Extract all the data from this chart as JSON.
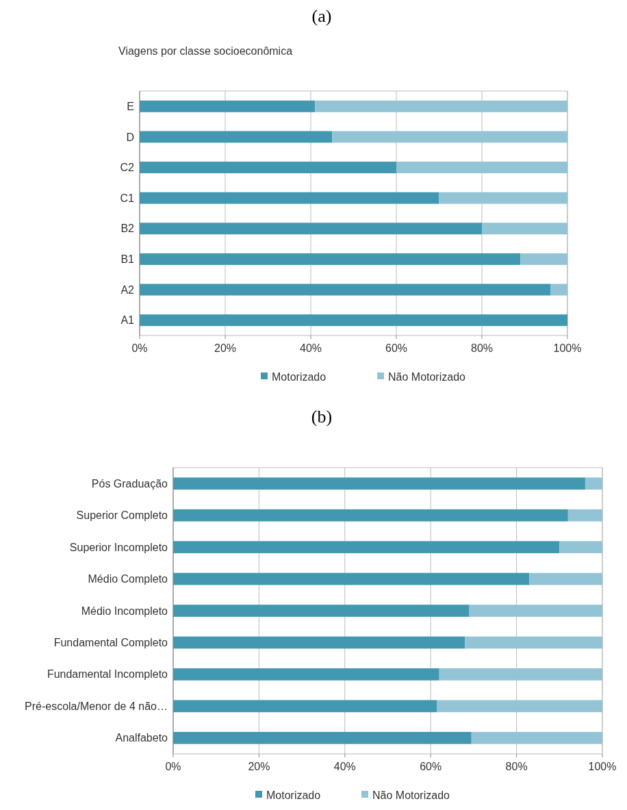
{
  "chart_data": [
    {
      "type": "bar",
      "orientation": "horizontal",
      "stacked": true,
      "title": "Viagens por classe socioeconômica",
      "annotations": [
        "(a)"
      ],
      "categories": [
        "E",
        "D",
        "C2",
        "C1",
        "B2",
        "B1",
        "A2",
        "A1"
      ],
      "series": [
        {
          "name": "Motorizado",
          "color": "#4198b0",
          "values": [
            41,
            45,
            60,
            70,
            80,
            89,
            96,
            100
          ]
        },
        {
          "name": "Não Motorizado",
          "color": "#92c4d6",
          "values": [
            59,
            55,
            40,
            30,
            20,
            11,
            4,
            0
          ]
        }
      ],
      "xlim": [
        0,
        100
      ],
      "xticks": [
        {
          "value": 0,
          "label": "0%"
        },
        {
          "value": 20,
          "label": "20%"
        },
        {
          "value": 40,
          "label": "40%"
        },
        {
          "value": 60,
          "label": "60%"
        },
        {
          "value": 80,
          "label": "80%"
        },
        {
          "value": 100,
          "label": "100%"
        }
      ],
      "grid": "x",
      "legend": "bottom"
    },
    {
      "type": "bar",
      "orientation": "horizontal",
      "stacked": true,
      "annotations": [
        "(b)"
      ],
      "categories": [
        "Pós Graduação",
        "Superior Completo",
        "Superior Incompleto",
        "Médio Completo",
        "Médio Incompleto",
        "Fundamental Completo",
        "Fundamental Incompleto",
        "Pré-escola/Menor de 4 não…",
        "Analfabeto"
      ],
      "series": [
        {
          "name": "Motorizado",
          "color": "#4198b0",
          "values": [
            96,
            92,
            90,
            83,
            69,
            68,
            62,
            61.5,
            69.5
          ]
        },
        {
          "name": "Não Motorizado",
          "color": "#92c4d6",
          "values": [
            4,
            8,
            10,
            17,
            31,
            32,
            38,
            38.5,
            30.5
          ]
        }
      ],
      "xlim": [
        0,
        100
      ],
      "xticks": [
        {
          "value": 0,
          "label": "0%"
        },
        {
          "value": 20,
          "label": "20%"
        },
        {
          "value": 40,
          "label": "40%"
        },
        {
          "value": 60,
          "label": "60%"
        },
        {
          "value": 80,
          "label": "80%"
        },
        {
          "value": 100,
          "label": "100%"
        }
      ],
      "grid": "x",
      "legend": "bottom"
    }
  ]
}
